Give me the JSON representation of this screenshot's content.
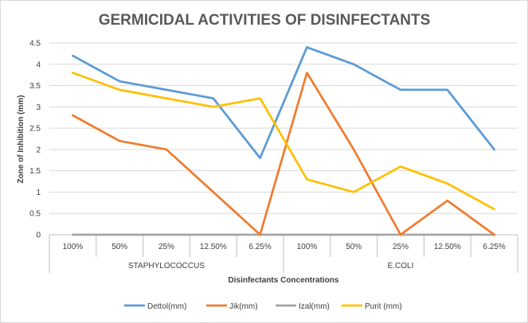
{
  "chart_data": {
    "type": "line",
    "title": "GERMICIDAL ACTIVITIES OF DISINFECTANTS",
    "xlabel": "Disinfectants Concentrations",
    "ylabel": "Zone of Inhibition  (mm)",
    "ylim": [
      0,
      4.5
    ],
    "yticks": [
      "0",
      "0.5",
      "1",
      "1.5",
      "2",
      "2.5",
      "3",
      "3.5",
      "4",
      "4.5"
    ],
    "categories": [
      "100%",
      "50%",
      "25%",
      "12.50%",
      "6.25%",
      "100%",
      "50%",
      "25%",
      "12.50%",
      "6.25%"
    ],
    "groups": [
      {
        "label": "STAPHYLOCOCCUS",
        "count": 5
      },
      {
        "label": "E.COLI",
        "count": 5
      }
    ],
    "grid": true,
    "legend_position": "bottom",
    "series": [
      {
        "name": "Dettol(mm)",
        "color": "#5b9bd5",
        "values": [
          4.2,
          3.6,
          3.4,
          3.2,
          1.8,
          4.4,
          4.0,
          3.4,
          3.4,
          2.0
        ]
      },
      {
        "name": "Jik(mm)",
        "color": "#ed7d31",
        "values": [
          2.8,
          2.2,
          2.0,
          1.0,
          0.0,
          3.8,
          2.0,
          0.0,
          0.8,
          0.0
        ]
      },
      {
        "name": "Izal(mm)",
        "color": "#a5a5a5",
        "values": [
          0,
          0,
          0,
          0,
          0,
          0,
          0,
          0,
          0,
          0
        ]
      },
      {
        "name": "Purit (mm)",
        "color": "#ffc000",
        "values": [
          3.8,
          3.4,
          3.2,
          3.0,
          3.2,
          1.3,
          1.0,
          1.6,
          1.2,
          0.6
        ]
      }
    ]
  }
}
